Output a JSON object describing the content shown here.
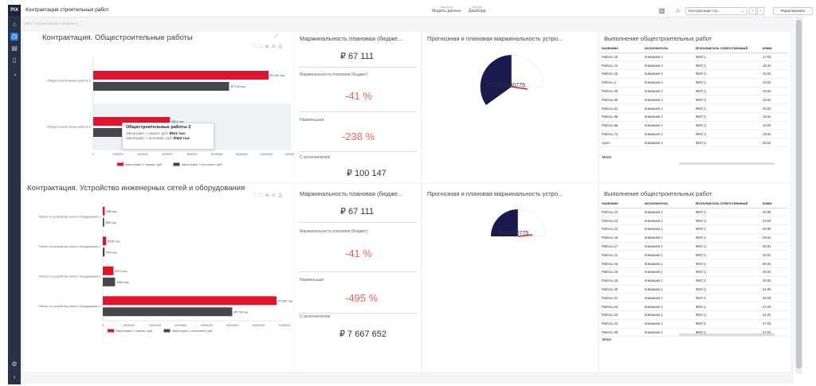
{
  "app": {
    "logo": "PIX",
    "title": "Контрактация строительных работ",
    "menu": [
      {
        "top": "Просмотр",
        "label": "Модель данных"
      },
      {
        "top": "Данные",
        "label": "Дашборд"
      }
    ],
    "sheet_select": "Контрактация стр...",
    "edit_button": "Редактировать",
    "breadcrumb": "Лист: Строительные Контракты",
    "nav_prev": "‹",
    "nav_next": "›"
  },
  "colors": {
    "red": "#e0152d",
    "dark": "#45474b",
    "navy": "#1a1a4e",
    "kpi_red": "#f0605a"
  },
  "section1": {
    "title": "Контрактация. Общестроительные работы",
    "kpi_title": "Маржинальность плановая (бюдже...",
    "kpi_value": "₽ 67 111",
    "kpi_plan_label": "Маржинальность плановая (бюджет)",
    "kpi_plan_value": "-41 %",
    "kpi_real_label": "Наименьшая",
    "kpi_real_value": "-238 %",
    "kpi_exec_label": "С исполнителем",
    "kpi_exec_value": "₽ 100 147",
    "gauge_title": "Прогнозная и плановая маржинальность устро...",
    "gauge_label": "ЛО1353380775",
    "table_title": "Выполнение общестроительных работ",
    "table_footer": "Итог:",
    "tooltip": {
      "title": "Общестроительные работы 2",
      "rows": [
        {
          "label": "Законтракт. с заказч. руб:",
          "value": "₽621 тыс"
        },
        {
          "label": "Законтракт. с исполнит. руб:",
          "value": "₽462 тыс"
        }
      ]
    }
  },
  "section2": {
    "title": "Контрактация. Устройство инженерных сетей и оборудования",
    "kpi_title": "Маржинальность плановая (бюдже...",
    "kpi_value": "₽ 67 111",
    "kpi_plan_label": "Маржинальность плановая (бюджет)",
    "kpi_plan_value": "-41 %",
    "kpi_real_label": "Наименьшая",
    "kpi_real_value": "-495 %",
    "kpi_exec_label": "С исполнителем",
    "kpi_exec_value": "₽ 7 667 652",
    "gauge_title": "Прогнозная и плановая маржинальность устро...",
    "gauge_label": "ЛО1370775",
    "table_title": "Выполнение общестроительных работ",
    "table_footer": "Итог:"
  },
  "table1": {
    "columns": [
      "название",
      "исполнитель",
      "Исполнитель ответственный",
      "комм"
    ],
    "rows": [
      [
        "Работы 10",
        "Компания 4",
        "ФИО 1",
        "17.02"
      ],
      [
        "Работы 14",
        "Компания 4",
        "ФИО 1",
        "18.20"
      ],
      [
        "Работы 15",
        "Компания 4",
        "ФИО 1",
        "15.02"
      ],
      [
        "Работы 2",
        "Компания 4",
        "ФИО 1",
        "15.02"
      ],
      [
        "Работы 20",
        "Компания 4",
        "ФИО 1",
        "15.02"
      ],
      [
        "Работы 30",
        "Компания 4",
        "ФИО 1",
        "15.02"
      ],
      [
        "Работы 31",
        "Компания 4",
        "ФИО 1",
        "20.02"
      ],
      [
        "Работы 55",
        "Компания 4",
        "ФИО 1",
        "15.02"
      ],
      [
        "Работы 56",
        "Компания 4",
        "ФИО 1",
        "10.02"
      ],
      [
        "Работы 71",
        "Компания 4",
        "ФИО 1",
        "15.02"
      ],
      [
        "скупс",
        "Компания 4",
        "ФИО 1",
        "30.02"
      ]
    ]
  },
  "table2": {
    "columns": [
      "название",
      "исполнитель",
      "Исполнитель ответственный",
      "комм"
    ],
    "rows": [
      [
        "Работы 12",
        "Компания 1",
        "ФИО 1",
        "20.05"
      ],
      [
        "Работы 13",
        "Компания 1",
        "ФИО 1",
        "24.04"
      ],
      [
        "Работы 14",
        "Компания 1",
        "ФИО 1",
        "20.05"
      ],
      [
        "Работы 15",
        "Компания 1",
        "ФИО 1",
        "29.01"
      ],
      [
        "Работы 17",
        "Компания 1",
        "ФИО 1",
        "05.02"
      ],
      [
        "Работы 11",
        "Компания 1",
        "ФИО 1",
        "30.01"
      ],
      [
        "Работы 18",
        "Компания 1",
        "ФИО 1",
        "05.02"
      ],
      [
        "Работы 19",
        "Компания 1",
        "ФИО 1",
        "30.01"
      ],
      [
        "Работы 1Б",
        "Компания 1",
        "ФИО 1",
        "30.03"
      ],
      [
        "Работы 20",
        "Компания 1",
        "ФИО 1",
        "31.05"
      ],
      [
        "Работы 21",
        "Компания 1",
        "ФИО 1",
        "25.03"
      ],
      [
        "Работы 22",
        "Компания 1",
        "ФИО 1",
        "27.03"
      ],
      [
        "Работы 23",
        "Компания 1",
        "ФИО 1",
        "22.01"
      ],
      [
        "Работы 24",
        "Компания 1",
        "ФИО 1",
        "27.02"
      ],
      [
        "Работы 25",
        "Компания 1",
        "ФИО 1",
        "27.01"
      ]
    ]
  },
  "chart_data": [
    {
      "type": "bar",
      "orientation": "horizontal",
      "categories": [
        "Общестроительные работы 1",
        "Общестроительные работы 2"
      ],
      "series": [
        {
          "name": "Законтракт. с заказч. руб",
          "values": [
            1420000,
            621000
          ],
          "labels": [
            "₽1 420 тыс",
            "₽621 тыс"
          ]
        },
        {
          "name": "Законтракт. с исполнит. руб",
          "values": [
            1100000,
            462000
          ],
          "labels": [
            "₽1 100 тыс",
            "₽462 тыс"
          ]
        }
      ],
      "xticks": [
        "0",
        "200000",
        "400000",
        "600000",
        "800000",
        "1000000",
        "1200000",
        "1400000",
        "1600000"
      ],
      "xlim": [
        0,
        1600000
      ],
      "legend": "bottom"
    },
    {
      "type": "bar",
      "orientation": "horizontal",
      "categories": [
        "Работы по устройству сетей и оборудования 1",
        "Работы по устройству сетей и оборудования 2",
        "Работы по устройству сетей и оборудования 3",
        "Работы по устройству сетей и оборудования 4"
      ],
      "series": [
        {
          "name": "Законтракт. с заказч. руб",
          "values": [
            85000,
            150000,
            470000,
            7650000
          ],
          "labels": [
            "₽85 тыс",
            "₽150 тыс",
            "₽470 тыс",
            "₽7 650 тыс"
          ]
        },
        {
          "name": "Законтракт. с исполнит. руб",
          "values": [
            60000,
            78000,
            540000,
            5700000
          ],
          "labels": [
            "₽60 тыс",
            "₽78 тыс",
            "₽540 тыс",
            "₽5 700 тыс"
          ]
        }
      ],
      "xticks": [
        "0",
        "1000000",
        "2000000",
        "3000000",
        "4000000",
        "5000000",
        "6000000",
        "7000000"
      ],
      "xlim": [
        0,
        8000000
      ],
      "legend": "bottom"
    }
  ]
}
